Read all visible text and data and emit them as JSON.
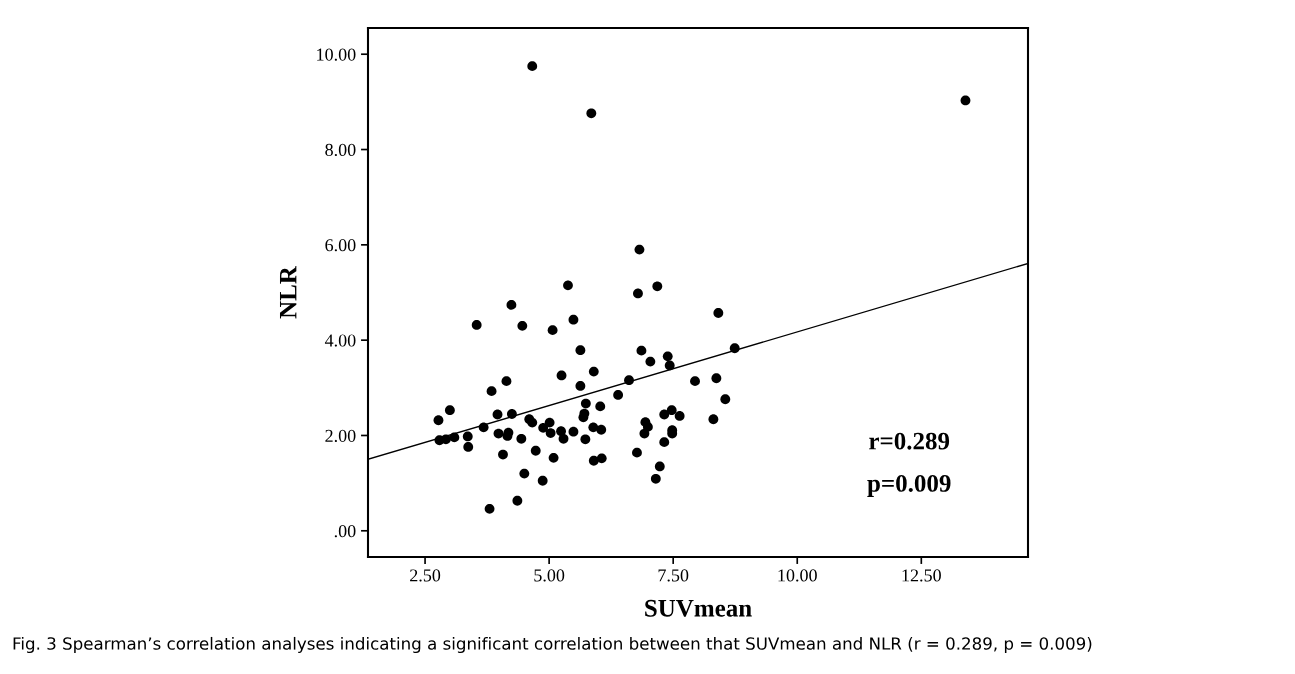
{
  "chart_data": {
    "type": "scatter",
    "xlabel": "SUVmean",
    "ylabel": "NLR",
    "xlim": [
      1.35,
      14.65
    ],
    "ylim": [
      -0.55,
      10.55
    ],
    "xticks": [
      {
        "value": 2.5,
        "label": "2.50"
      },
      {
        "value": 5,
        "label": "5.00"
      },
      {
        "value": 7.5,
        "label": "7.50"
      },
      {
        "value": 10,
        "label": "10.00"
      },
      {
        "value": 12.5,
        "label": "12.50"
      }
    ],
    "yticks": [
      {
        "value": 0,
        "label": ".00"
      },
      {
        "value": 2,
        "label": "2.00"
      },
      {
        "value": 4,
        "label": "4.00"
      },
      {
        "value": 6,
        "label": "6.00"
      },
      {
        "value": 8,
        "label": "8.00"
      },
      {
        "value": 10,
        "label": "10.00"
      }
    ],
    "grid": false,
    "marker": "circle",
    "series": [
      {
        "color": "#000000",
        "x": [
          5.38,
          7.18,
          6.79,
          4.24,
          3.54,
          4.46,
          5.49,
          5.07,
          5.63,
          6.86,
          7.04,
          7.39,
          7.43,
          5.9,
          5.25,
          4.14,
          6.61,
          7.94,
          5.63,
          3.84,
          6.39,
          3.0,
          2.77,
          3.96,
          4.25,
          5.74,
          6.03,
          5.71,
          5.69,
          4.6,
          4.66,
          5.01,
          7.47,
          7.32,
          7.63,
          6.94,
          6.99,
          6.92,
          7.48,
          7.48,
          3.68,
          4.88,
          5.89,
          6.05,
          5.49,
          5.24,
          3.98,
          4.18,
          4.16,
          5.03,
          2.79,
          2.92,
          3.09,
          3.36,
          5.29,
          4.44,
          5.73,
          3.37,
          4.07,
          4.73,
          5.09,
          5.9,
          6.06,
          6.77,
          7.32,
          7.23,
          7.15,
          4.5,
          4.87,
          4.36,
          3.8,
          8.41,
          8.74,
          8.37,
          8.55,
          8.31,
          4.66,
          5.85,
          6.82,
          13.39
        ],
        "values": [
          5.15,
          5.13,
          4.98,
          4.74,
          4.32,
          4.3,
          4.43,
          4.21,
          3.79,
          3.78,
          3.55,
          3.66,
          3.47,
          3.34,
          3.26,
          3.14,
          3.16,
          3.14,
          3.04,
          2.93,
          2.85,
          2.53,
          2.32,
          2.44,
          2.45,
          2.67,
          2.61,
          2.46,
          2.38,
          2.34,
          2.27,
          2.27,
          2.53,
          2.44,
          2.41,
          2.28,
          2.18,
          2.04,
          2.11,
          2.04,
          2.17,
          2.16,
          2.17,
          2.12,
          2.08,
          2.09,
          2.04,
          2.06,
          1.99,
          2.05,
          1.9,
          1.92,
          1.96,
          1.98,
          1.93,
          1.93,
          1.92,
          1.76,
          1.6,
          1.68,
          1.53,
          1.47,
          1.52,
          1.64,
          1.86,
          1.35,
          1.09,
          1.2,
          1.05,
          0.63,
          0.46,
          4.57,
          3.83,
          3.2,
          2.76,
          2.34,
          9.75,
          8.76,
          5.9,
          9.03
        ]
      },
      {
        "type": "line",
        "color": "#000000",
        "line_style": "solid",
        "marker": "none",
        "x": [
          1.35,
          14.65
        ],
        "values": [
          1.5,
          5.61
        ]
      }
    ],
    "annotations": [
      "r=0.289",
      "p=0.009",
      "Fig. 3 Spearman’s correlation analyses indicating a significant correlation between that SUVmean and NLR (r = 0.289, p = 0.009)"
    ]
  }
}
